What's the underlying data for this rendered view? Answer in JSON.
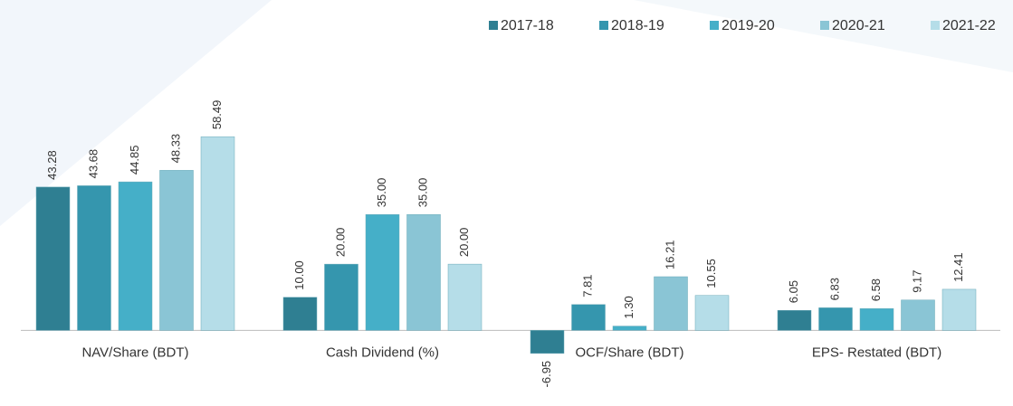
{
  "chart_data": {
    "type": "bar",
    "categories": [
      "NAV/Share (BDT)",
      "Cash Dividend (%)",
      "OCF/Share (BDT)",
      "EPS- Restated (BDT)"
    ],
    "series": [
      {
        "name": "2017-18",
        "color": "#2f7f92",
        "values": [
          43.28,
          10,
          -6.95,
          6.05
        ],
        "value_labels": [
          "43.28",
          "10.00",
          "-6.95",
          "6.05"
        ]
      },
      {
        "name": "2018-19",
        "color": "#3596ae",
        "values": [
          43.68,
          20,
          7.81,
          6.83
        ],
        "value_labels": [
          "43.68",
          "20.00",
          "7.81",
          "6.83"
        ]
      },
      {
        "name": "2019-20",
        "color": "#45afc8",
        "values": [
          44.85,
          35,
          1.3,
          6.58
        ],
        "value_labels": [
          "44.85",
          "35.00",
          "1.30",
          "6.58"
        ]
      },
      {
        "name": "2020-21",
        "color": "#8ac5d5",
        "values": [
          48.33,
          35,
          16.21,
          9.17
        ],
        "value_labels": [
          "48.33",
          "35.00",
          "16.21",
          "9.17"
        ]
      },
      {
        "name": "2021-22",
        "color": "#b5dde8",
        "values": [
          58.49,
          20,
          10.55,
          12.41
        ],
        "value_labels": [
          "58.49",
          "20.00",
          "10.55",
          "12.41"
        ]
      }
    ],
    "ylim": [
      -10,
      70
    ],
    "legend": "top-right"
  }
}
